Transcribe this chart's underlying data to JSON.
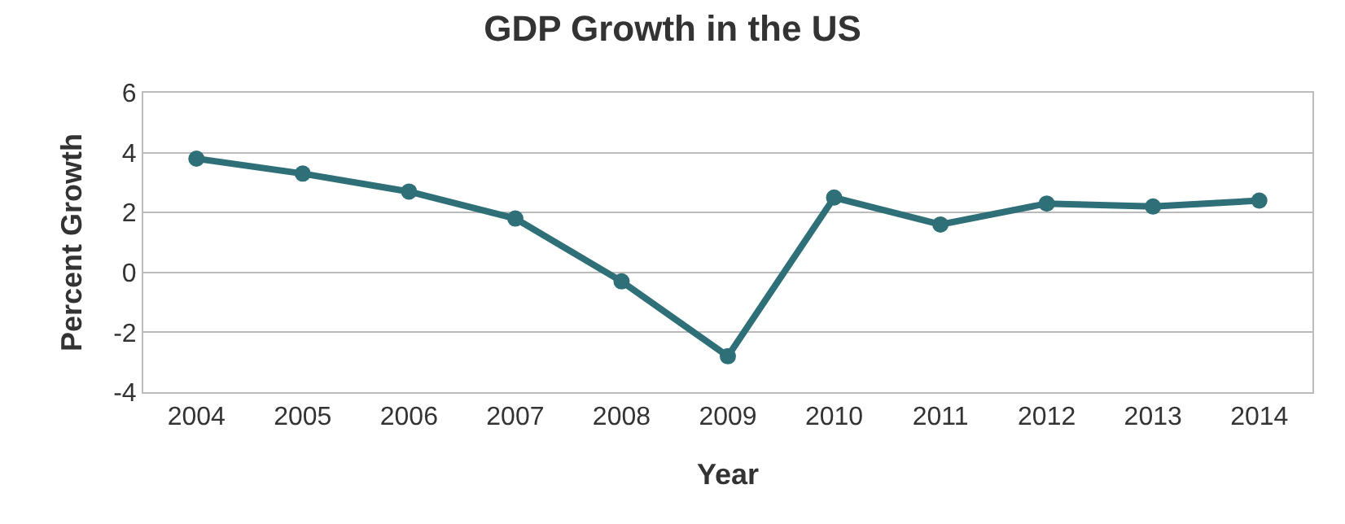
{
  "chart_data": {
    "type": "line",
    "title": "GDP Growth in the US",
    "xlabel": "Year",
    "ylabel": "Percent Growth",
    "categories": [
      "2004",
      "2005",
      "2006",
      "2007",
      "2008",
      "2009",
      "2010",
      "2011",
      "2012",
      "2013",
      "2014"
    ],
    "series": [
      {
        "color": "#2f6f78",
        "values": [
          3.8,
          3.3,
          2.7,
          1.8,
          -0.3,
          -2.8,
          2.5,
          1.6,
          2.3,
          2.2,
          2.4
        ]
      }
    ],
    "ylim": [
      -4,
      6
    ],
    "yticks": [
      -4,
      -2,
      0,
      2,
      4,
      6
    ],
    "grid": "y",
    "marker": "circle",
    "line_style": "solid"
  }
}
